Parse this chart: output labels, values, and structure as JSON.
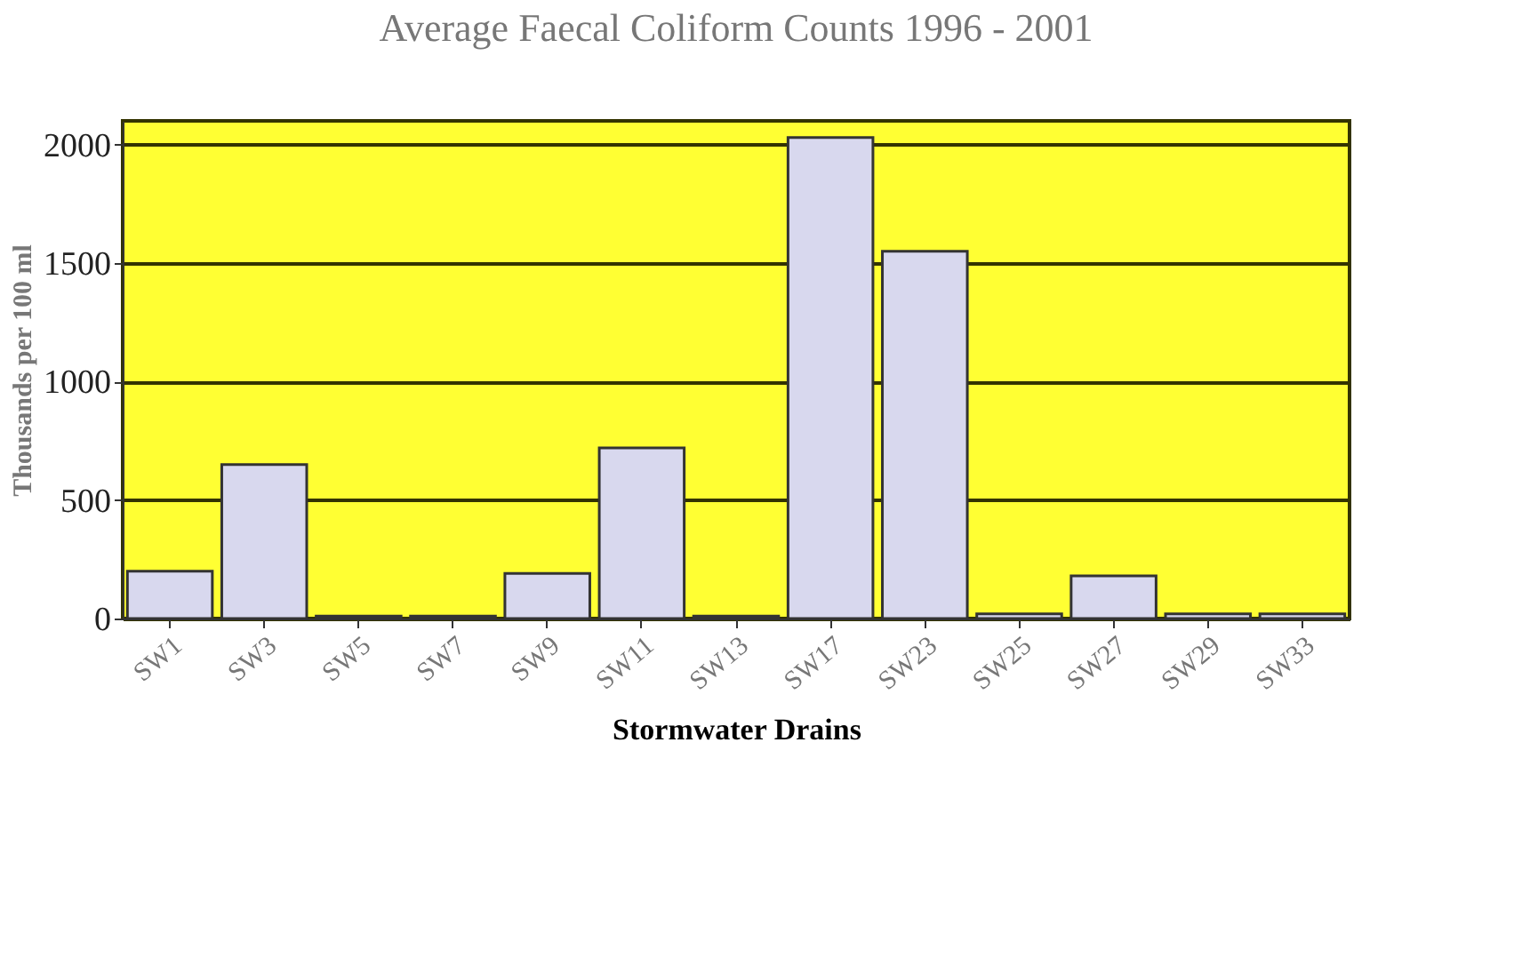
{
  "chart_data": {
    "type": "bar",
    "title": "Average Faecal Coliform Counts 1996 - 2001",
    "xlabel": "Stormwater Drains",
    "ylabel": "Thousands per 100 ml",
    "categories": [
      "SW1",
      "SW3",
      "SW5",
      "SW7",
      "SW9",
      "SW11",
      "SW13",
      "SW17",
      "SW23",
      "SW25",
      "SW27",
      "SW29",
      "SW33"
    ],
    "values": [
      200,
      650,
      10,
      10,
      190,
      720,
      10,
      2030,
      1550,
      20,
      180,
      20,
      20
    ],
    "color": "#d8d8ee",
    "ylim": [
      0,
      2100
    ],
    "yticks": [
      0,
      500,
      1000,
      1500,
      2000
    ],
    "grid": "y"
  }
}
